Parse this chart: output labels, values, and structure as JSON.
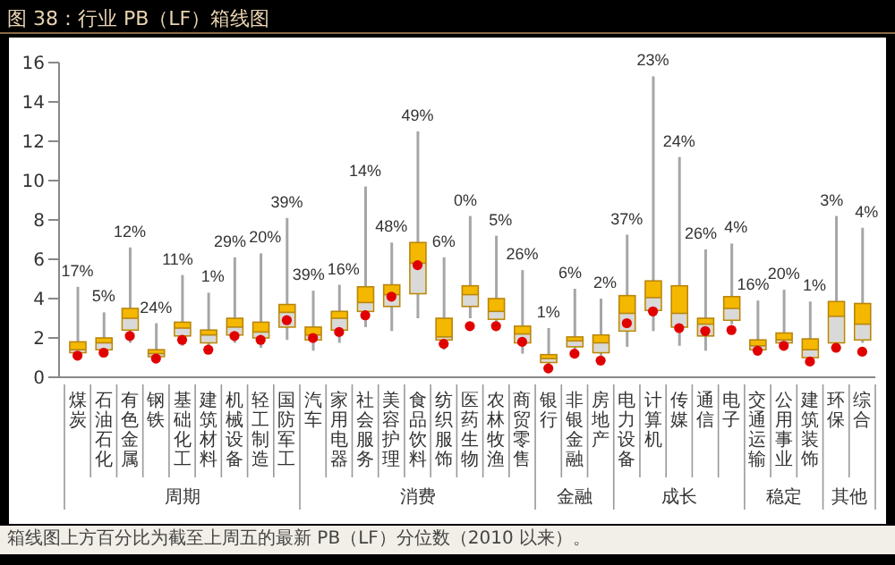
{
  "chart_data": {
    "type": "box",
    "title": "图 38：行业 PB（LF）箱线图",
    "categories": [
      "煤炭",
      "石油石化",
      "有色金属",
      "钢铁",
      "基础化工",
      "建筑材料",
      "机械设备",
      "轻工制造",
      "国防军工",
      "汽车",
      "家用电器",
      "社会服务",
      "美容护理",
      "食品饮料",
      "纺织服饰",
      "医药生物",
      "农林牧渔",
      "商贸零售",
      "银行",
      "非银金融",
      "房地产",
      "电力设备",
      "计算机",
      "传媒",
      "通信",
      "电子",
      "交通运输",
      "公用事业",
      "建筑装饰",
      "环保",
      "综合"
    ],
    "ylim": [
      0,
      16
    ],
    "yticks": [
      0,
      2,
      4,
      6,
      8,
      10,
      12,
      14,
      16
    ],
    "series": [
      {
        "type": "box",
        "color": "#f5b800",
        "boxes": [
          {
            "low": 1.0,
            "q1": 1.25,
            "median": 1.4,
            "q3": 1.8,
            "high": 4.6
          },
          {
            "low": 1.2,
            "q1": 1.4,
            "median": 1.75,
            "q3": 2.0,
            "high": 3.3
          },
          {
            "low": 1.75,
            "q1": 2.4,
            "median": 3.0,
            "q3": 3.5,
            "high": 6.6
          },
          {
            "low": 0.85,
            "q1": 1.05,
            "median": 1.2,
            "q3": 1.4,
            "high": 2.75
          },
          {
            "low": 1.6,
            "q1": 2.1,
            "median": 2.5,
            "q3": 2.8,
            "high": 5.2
          },
          {
            "low": 1.35,
            "q1": 1.75,
            "median": 2.15,
            "q3": 2.4,
            "high": 4.3
          },
          {
            "low": 1.75,
            "q1": 2.15,
            "median": 2.55,
            "q3": 3.0,
            "high": 6.1
          },
          {
            "low": 1.5,
            "q1": 2.0,
            "median": 2.3,
            "q3": 2.8,
            "high": 6.3
          },
          {
            "low": 1.9,
            "q1": 2.55,
            "median": 3.3,
            "q3": 3.7,
            "high": 8.1
          },
          {
            "low": 1.35,
            "q1": 1.9,
            "median": 2.15,
            "q3": 2.55,
            "high": 4.4
          },
          {
            "low": 1.75,
            "q1": 2.4,
            "median": 3.0,
            "q3": 3.35,
            "high": 4.7
          },
          {
            "low": 2.55,
            "q1": 3.35,
            "median": 3.8,
            "q3": 4.6,
            "high": 9.7
          },
          {
            "low": 2.35,
            "q1": 3.6,
            "median": 4.2,
            "q3": 4.7,
            "high": 6.85
          },
          {
            "low": 3.0,
            "q1": 4.25,
            "median": 5.8,
            "q3": 6.85,
            "high": 12.5
          },
          {
            "low": 1.4,
            "q1": 1.9,
            "median": 2.05,
            "q3": 3.0,
            "high": 6.1
          },
          {
            "low": 3.0,
            "q1": 3.6,
            "median": 4.2,
            "q3": 4.65,
            "high": 8.2
          },
          {
            "low": 2.55,
            "q1": 2.95,
            "median": 3.35,
            "q3": 4.0,
            "high": 7.2
          },
          {
            "low": 1.2,
            "q1": 1.75,
            "median": 2.2,
            "q3": 2.6,
            "high": 5.45
          },
          {
            "low": 0.55,
            "q1": 0.75,
            "median": 0.95,
            "q3": 1.15,
            "high": 2.5
          },
          {
            "low": 1.35,
            "q1": 1.55,
            "median": 1.85,
            "q3": 2.05,
            "high": 4.5
          },
          {
            "low": 1.1,
            "q1": 1.25,
            "median": 1.75,
            "q3": 2.15,
            "high": 4.0
          },
          {
            "low": 1.55,
            "q1": 2.35,
            "median": 3.25,
            "q3": 4.15,
            "high": 7.25
          },
          {
            "low": 2.35,
            "q1": 3.4,
            "median": 4.05,
            "q3": 4.9,
            "high": 15.3
          },
          {
            "low": 1.6,
            "q1": 2.55,
            "median": 3.25,
            "q3": 4.65,
            "high": 11.2
          },
          {
            "low": 1.35,
            "q1": 2.1,
            "median": 2.7,
            "q3": 3.0,
            "high": 6.5
          },
          {
            "low": 2.7,
            "q1": 2.9,
            "median": 3.5,
            "q3": 4.1,
            "high": 6.8
          },
          {
            "low": 1.35,
            "q1": 1.4,
            "median": 1.6,
            "q3": 1.9,
            "high": 3.9
          },
          {
            "low": 1.6,
            "q1": 1.75,
            "median": 1.9,
            "q3": 2.25,
            "high": 4.45
          },
          {
            "low": 0.8,
            "q1": 1.0,
            "median": 1.4,
            "q3": 1.95,
            "high": 3.85
          },
          {
            "low": 1.6,
            "q1": 1.75,
            "median": 3.1,
            "q3": 3.85,
            "high": 8.2
          },
          {
            "low": 1.75,
            "q1": 1.9,
            "median": 2.7,
            "q3": 3.75,
            "high": 7.6
          }
        ]
      },
      {
        "type": "scatter",
        "color": "#e00000",
        "marker": "circle",
        "x": [
          "煤炭",
          "石油石化",
          "有色金属",
          "钢铁",
          "基础化工",
          "建筑材料",
          "机械设备",
          "轻工制造",
          "国防军工",
          "汽车",
          "家用电器",
          "社会服务",
          "美容护理",
          "食品饮料",
          "纺织服饰",
          "医药生物",
          "农林牧渔",
          "商贸零售",
          "银行",
          "非银金融",
          "房地产",
          "电力设备",
          "计算机",
          "传媒",
          "通信",
          "电子",
          "交通运输",
          "公用事业",
          "建筑装饰",
          "环保",
          "综合"
        ],
        "values": [
          1.1,
          1.25,
          2.1,
          0.95,
          1.9,
          1.4,
          2.1,
          1.9,
          2.9,
          2.0,
          2.3,
          3.15,
          4.1,
          5.7,
          1.7,
          2.6,
          2.6,
          1.8,
          0.45,
          1.2,
          0.85,
          2.75,
          3.35,
          2.5,
          2.35,
          2.4,
          1.35,
          1.6,
          0.8,
          1.5,
          1.3
        ]
      }
    ],
    "annotations": [
      {
        "text": "17%",
        "x": "煤炭",
        "y": 4.6
      },
      {
        "text": "5%",
        "x": "石油石化",
        "y": 3.3
      },
      {
        "text": "12%",
        "x": "有色金属",
        "y": 6.6
      },
      {
        "text": "24%",
        "x": "钢铁",
        "y": 2.75
      },
      {
        "text": "11%",
        "x": "基础化工",
        "y": 5.2
      },
      {
        "text": "1%",
        "x": "建筑材料",
        "y": 4.3
      },
      {
        "text": "29%",
        "x": "机械设备",
        "y": 6.1
      },
      {
        "text": "20%",
        "x": "轻工制造",
        "y": 6.3
      },
      {
        "text": "39%",
        "x": "国防军工",
        "y": 8.1
      },
      {
        "text": "39%",
        "x": "汽车",
        "y": 4.4
      },
      {
        "text": "16%",
        "x": "家用电器",
        "y": 4.7
      },
      {
        "text": "14%",
        "x": "社会服务",
        "y": 9.7
      },
      {
        "text": "48%",
        "x": "美容护理",
        "y": 6.85
      },
      {
        "text": "49%",
        "x": "食品饮料",
        "y": 12.5
      },
      {
        "text": "6%",
        "x": "纺织服饰",
        "y": 6.1
      },
      {
        "text": "0%",
        "x": "医药生物",
        "y": 8.2
      },
      {
        "text": "5%",
        "x": "农林牧渔",
        "y": 7.2
      },
      {
        "text": "26%",
        "x": "商贸零售",
        "y": 5.45
      },
      {
        "text": "1%",
        "x": "银行",
        "y": 2.5
      },
      {
        "text": "6%",
        "x": "非银金融",
        "y": 4.5
      },
      {
        "text": "2%",
        "x": "房地产",
        "y": 4.0
      },
      {
        "text": "37%",
        "x": "电力设备",
        "y": 7.25
      },
      {
        "text": "23%",
        "x": "计算机",
        "y": 15.3
      },
      {
        "text": "24%",
        "x": "传媒",
        "y": 11.2
      },
      {
        "text": "26%",
        "x": "通信",
        "y": 6.5
      },
      {
        "text": "4%",
        "x": "电子",
        "y": 6.8
      },
      {
        "text": "16%",
        "x": "交通运输",
        "y": 3.9
      },
      {
        "text": "20%",
        "x": "公用事业",
        "y": 4.45
      },
      {
        "text": "1%",
        "x": "建筑装饰",
        "y": 3.85
      },
      {
        "text": "3%",
        "x": "环保",
        "y": 8.2
      },
      {
        "text": "4%",
        "x": "综合",
        "y": 7.6
      },
      "周期",
      "消费",
      "金融",
      "成长",
      "稳定",
      "其他",
      "箱线图上方百分比为截至上周五的最新 PB（LF）分位数（2010 以来）。"
    ]
  }
}
